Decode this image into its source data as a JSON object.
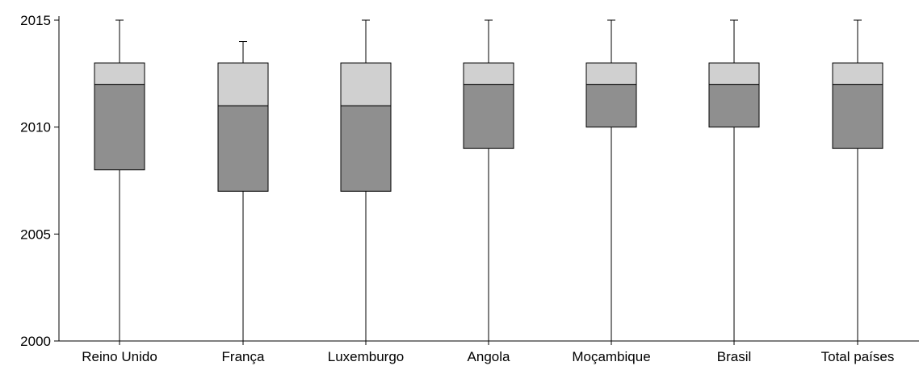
{
  "chart_data": {
    "type": "boxplot",
    "categories": [
      "Reino Unido",
      "França",
      "Luxemburgo",
      "Angola",
      "Moçambique",
      "Brasil",
      "Total países"
    ],
    "series": [
      {
        "category": "Reino Unido",
        "min": 2000,
        "q1": 2008,
        "median": 2012,
        "q3": 2013,
        "max": 2015
      },
      {
        "category": "França",
        "min": 2000,
        "q1": 2007,
        "median": 2011,
        "q3": 2013,
        "max": 2014
      },
      {
        "category": "Luxemburgo",
        "min": 2000,
        "q1": 2007,
        "median": 2011,
        "q3": 2013,
        "max": 2015
      },
      {
        "category": "Angola",
        "min": 2000,
        "q1": 2009,
        "median": 2012,
        "q3": 2013,
        "max": 2015
      },
      {
        "category": "Moçambique",
        "min": 2000,
        "q1": 2010,
        "median": 2012,
        "q3": 2013,
        "max": 2015
      },
      {
        "category": "Brasil",
        "min": 2000,
        "q1": 2010,
        "median": 2012,
        "q3": 2013,
        "max": 2015
      },
      {
        "category": "Total países",
        "min": 2000,
        "q1": 2009,
        "median": 2012,
        "q3": 2013,
        "max": 2015
      }
    ],
    "y_ticks": [
      "2000",
      "2005",
      "2010",
      "2015"
    ],
    "ylim": [
      2000,
      2015
    ],
    "grid": false,
    "colors": {
      "lower_box": "#8f8f8f",
      "upper_box": "#d0d0d0",
      "stroke": "#000000"
    }
  }
}
